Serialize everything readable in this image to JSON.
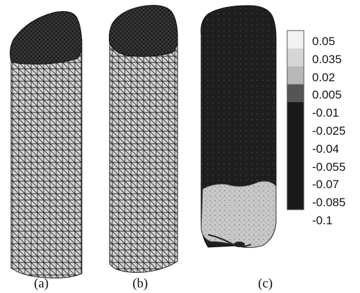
{
  "panels": [
    {
      "id": "a",
      "caption": "(a)"
    },
    {
      "id": "b",
      "caption": "(b)"
    },
    {
      "id": "c",
      "caption": "(c)"
    }
  ],
  "colorbar": {
    "labels": [
      "0.05",
      "0.035",
      "0.02",
      "0.005",
      "-0.01",
      "-0.025",
      "-0.04",
      "-0.055",
      "-0.07",
      "-0.085",
      "-0.1"
    ],
    "shades": [
      "#f2f2f2",
      "#d6d6d6",
      "#b8b8b8",
      "#555555",
      "#1a1a1a",
      "#1a1a1a",
      "#1a1a1a",
      "#1a1a1a",
      "#1a1a1a",
      "#1a1a1a",
      "#1a1a1a"
    ]
  },
  "colors": {
    "mesh_fill": "#d4d4d4",
    "mesh_line": "#222222",
    "dark": "#1c1c1c",
    "light": "#c4c4c4"
  }
}
